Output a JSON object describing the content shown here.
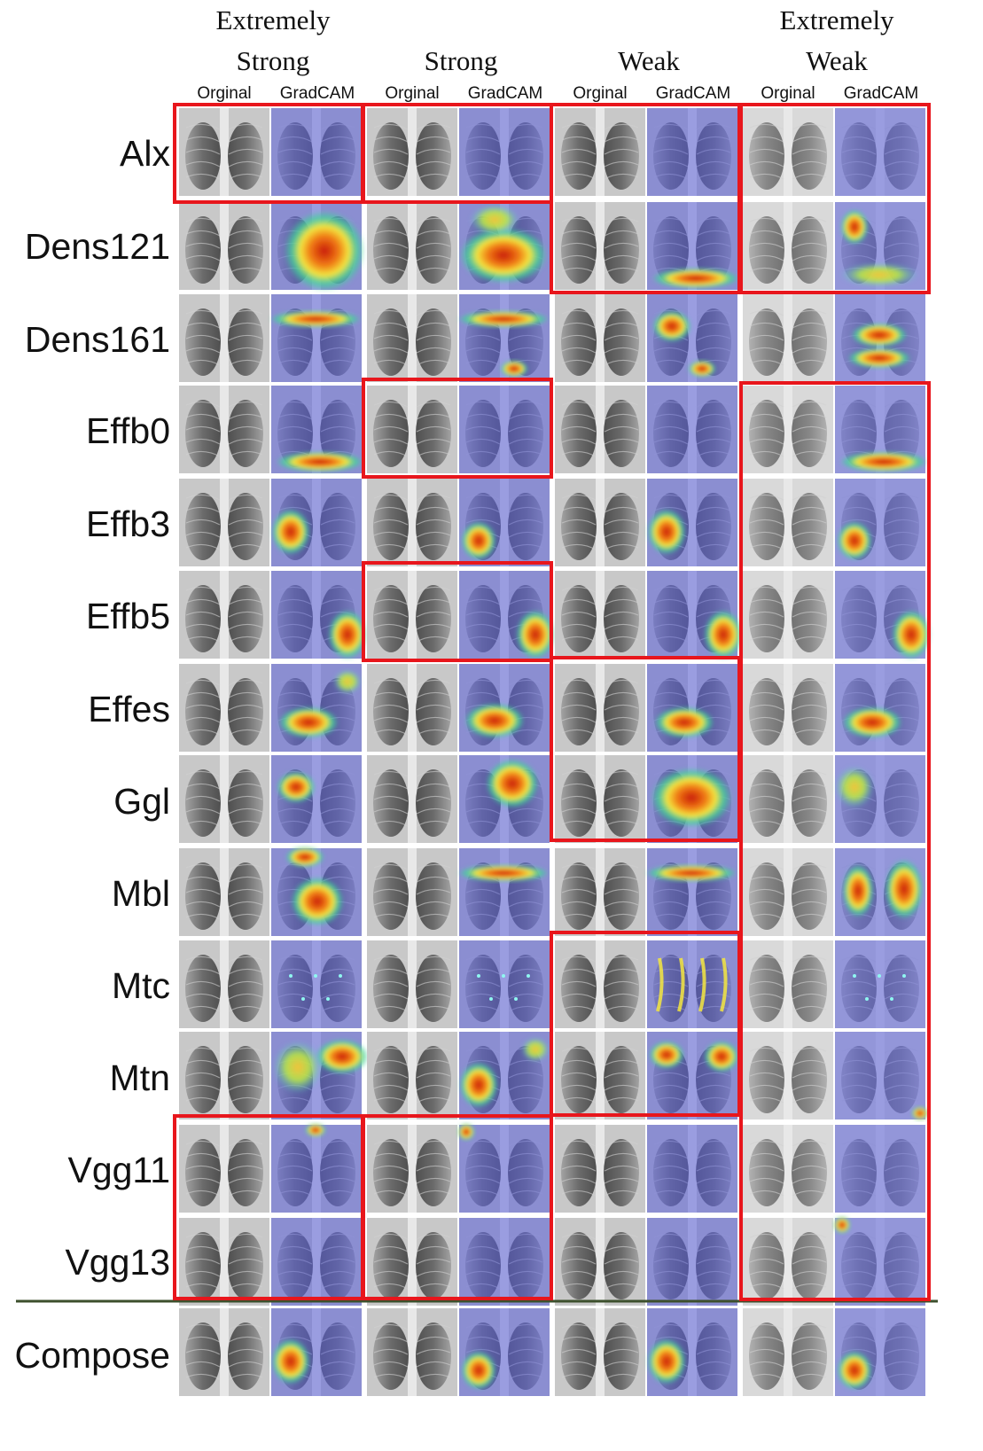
{
  "groups": [
    {
      "line1": "Extremely",
      "line2": "Strong"
    },
    {
      "line1": "",
      "line2": "Strong"
    },
    {
      "line1": "",
      "line2": "Weak"
    },
    {
      "line1": "Extremely",
      "line2": "Weak"
    }
  ],
  "subcolumns": {
    "original": "Orginal",
    "gradcam": "GradCAM"
  },
  "rows": [
    "Alx",
    "Dens121",
    "Dens161",
    "Effb0",
    "Effb3",
    "Effb5",
    "Effes",
    "Ggl",
    "Mbl",
    "Mtc",
    "Mtn",
    "Vgg11",
    "Vgg13",
    "Compose"
  ],
  "colors": {
    "highlight": "#e8161c",
    "divider": "#3c4f2c",
    "overlay": "#5a5fd8"
  },
  "heat": {
    "Alx": [
      [],
      [],
      [],
      []
    ],
    "Dens121": [
      [
        "big"
      ],
      [
        "redband"
      ],
      [
        "bottomband"
      ],
      [
        "redspot-left"
      ]
    ],
    "Dens161": [
      [
        "topband"
      ],
      [
        "topband",
        "bottomspot"
      ],
      [
        "leftspot",
        "bottomspot"
      ],
      [
        "wave"
      ]
    ],
    "Effb0": [
      [
        "bottomband"
      ],
      [],
      [],
      [
        "bottomband"
      ]
    ],
    "Effb3": [
      [
        "leftmid"
      ],
      [
        "leftlow"
      ],
      [
        "leftmid"
      ],
      [
        "leftlow"
      ]
    ],
    "Effb5": [
      [
        "rightlow"
      ],
      [
        "rightlow"
      ],
      [
        "rightlow"
      ],
      [
        "rightlow"
      ]
    ],
    "Effes": [
      [
        "lowmid",
        "topright"
      ],
      [
        "midlow"
      ],
      [
        "lowmid"
      ],
      [
        "lowmid"
      ]
    ],
    "Ggl": [
      [
        "leftspot"
      ],
      [
        "centerspot"
      ],
      [
        "wide"
      ],
      [
        "topleft"
      ]
    ],
    "Mbl": [
      [
        "toppair",
        "center"
      ],
      [
        "topband"
      ],
      [
        "topband"
      ],
      [
        "twolobes"
      ]
    ],
    "Mtc": [
      [
        "speck"
      ],
      [
        "speck"
      ],
      [
        "streaks"
      ],
      [
        "speck"
      ]
    ],
    "Mtn": [
      [
        "toprightwide"
      ],
      [
        "leftmid",
        "topright"
      ],
      [
        "twotop"
      ],
      [
        "corner"
      ]
    ],
    "Vgg11": [
      [
        "topspot"
      ],
      [
        "topleftspot"
      ],
      [],
      []
    ],
    "Vgg13": [
      [],
      [],
      [],
      [
        "topleftspot"
      ]
    ],
    "Compose": [
      [
        "leftmid"
      ],
      [
        "leftlow"
      ],
      [
        "leftmid"
      ],
      [
        "leftlow"
      ]
    ]
  }
}
